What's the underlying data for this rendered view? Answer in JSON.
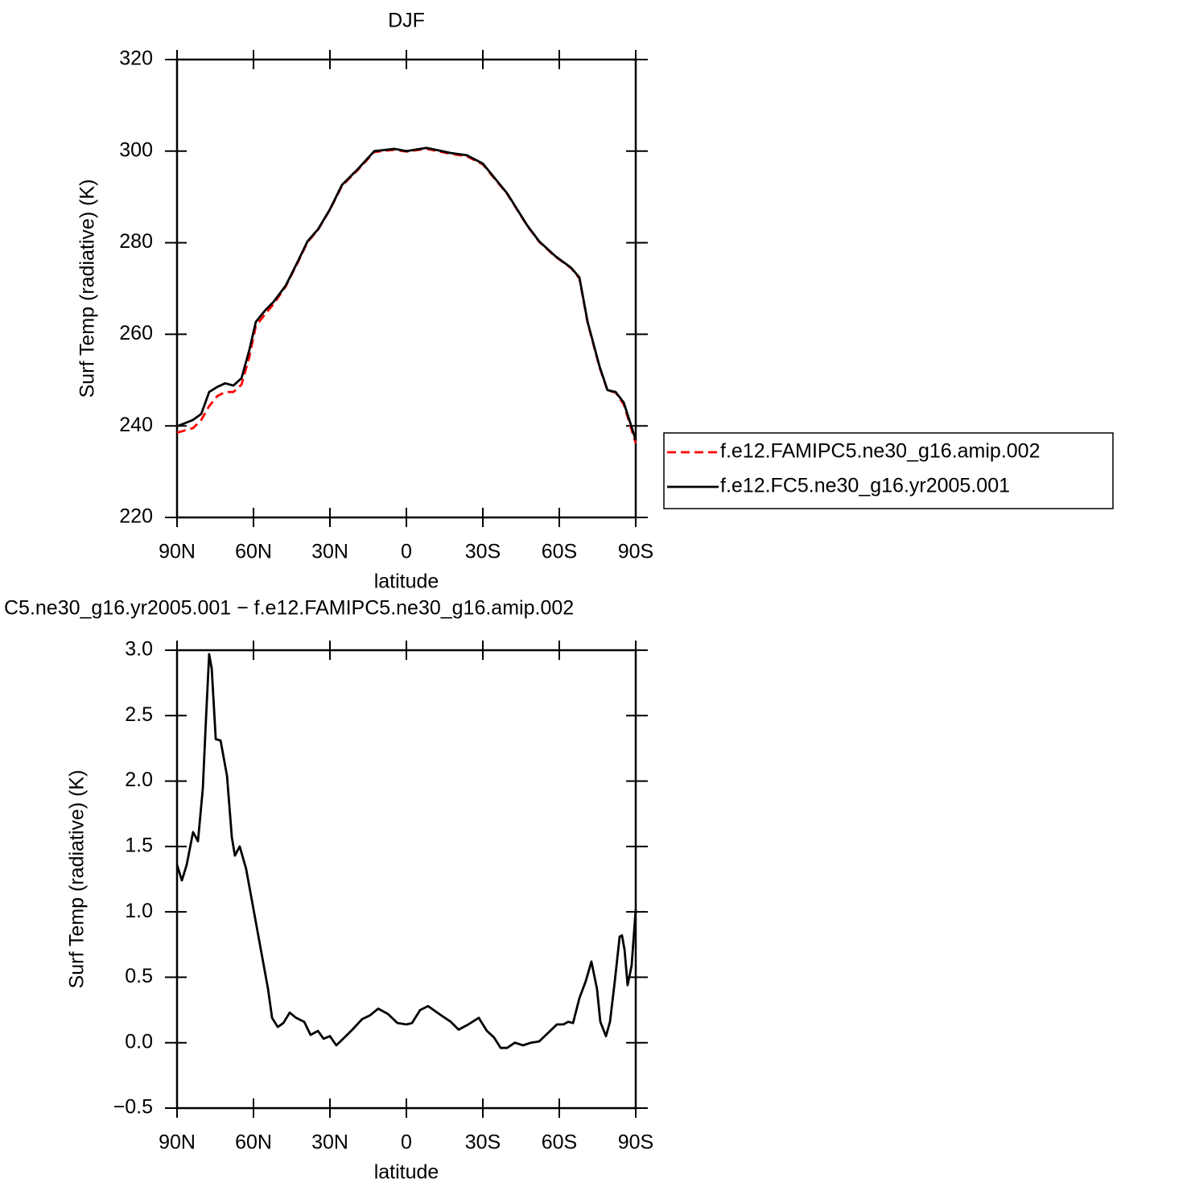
{
  "chart_data": [
    {
      "type": "line",
      "title": "DJF",
      "x_label": "latitude",
      "y_label": "Surf Temp (radiative) (K)",
      "x": [
        90,
        83.7,
        80.5,
        77.4,
        74.2,
        71.1,
        67.9,
        64.7,
        61.6,
        59.1,
        55.3,
        52.1,
        47.4,
        42.6,
        38.8,
        34.7,
        30,
        25.3,
        19,
        12.6,
        4.7,
        0,
        -7.9,
        -17.4,
        -23.7,
        -30,
        -39.5,
        -47.4,
        -52.1,
        -58.4,
        -64.7,
        -67.9,
        -71.1,
        -75.8,
        -78.9,
        -82.1,
        -85.3,
        -90
      ],
      "series": [
        {
          "name": "f.e12.FAMIPC5.ne30_g16.amip.002",
          "color": "#ff0000",
          "dashed": true,
          "values": [
            238.5,
            239.5,
            241.3,
            244.3,
            246.5,
            247.4,
            247.4,
            249.0,
            255.1,
            261.8,
            264.5,
            266.6,
            270.4,
            275.7,
            280.1,
            282.8,
            287.2,
            292.4,
            295.9,
            299.8,
            300.3,
            299.9,
            300.5,
            299.4,
            298.9,
            297.1,
            290.7,
            283.7,
            280.2,
            277.0,
            274.4,
            272.2,
            262.5,
            252.8,
            247.7,
            247.3,
            244.7,
            236.2
          ]
        },
        {
          "name": "f.e12.FC5.ne30_g16.yr2005.001",
          "color": "#000000",
          "dashed": false,
          "values": [
            239.9,
            241.3,
            242.6,
            247.4,
            248.5,
            249.3,
            248.8,
            250.4,
            256.6,
            262.7,
            265.3,
            267.1,
            270.6,
            275.9,
            280.3,
            282.9,
            287.3,
            292.6,
            296.1,
            300.0,
            300.5,
            300.0,
            300.7,
            299.6,
            299.1,
            297.3,
            290.8,
            283.8,
            280.3,
            277.1,
            274.5,
            272.4,
            262.7,
            253.0,
            247.8,
            247.4,
            245.1,
            236.9
          ]
        }
      ],
      "xlim": [
        90,
        -90
      ],
      "xticks": [
        {
          "value": 90,
          "label": "90N"
        },
        {
          "value": 60,
          "label": "60N"
        },
        {
          "value": 30,
          "label": "30N"
        },
        0,
        {
          "value": -30,
          "label": "30S"
        },
        {
          "value": -60,
          "label": "60S"
        },
        {
          "value": -90,
          "label": "90S"
        }
      ],
      "ylim": [
        220,
        320
      ],
      "yticks": [
        220,
        240,
        260,
        280,
        300,
        320
      ],
      "legend": "right"
    },
    {
      "type": "line",
      "title": "C5.ne30_g16.yr2005.001 − f.e12.FAMIPC5.ne30_g16.amip.002",
      "x_label": "latitude",
      "y_label": "Surf Temp (radiative) (K)",
      "x": [
        90,
        88.1,
        86.2,
        83.7,
        81.8,
        79.9,
        78.6,
        77.4,
        76.4,
        74.8,
        72.9,
        70.4,
        68.5,
        67.3,
        65.4,
        62.9,
        60.0,
        56.8,
        54.3,
        52.7,
        50.5,
        48.3,
        45.8,
        43.3,
        40.1,
        37.6,
        34.7,
        32.5,
        30.0,
        27.5,
        24.3,
        21.2,
        17.4,
        14.2,
        11.1,
        7.3,
        3.5,
        0,
        -2.2,
        -5.4,
        -8.5,
        -13.6,
        -17.4,
        -20.5,
        -24.3,
        -28.4,
        -31.6,
        -34.4,
        -37.0,
        -39.5,
        -42.6,
        -45.8,
        -48.9,
        -52.1,
        -55.9,
        -59.1,
        -61.6,
        -63.5,
        -65.4,
        -67.9,
        -70.4,
        -72.6,
        -74.8,
        -76.1,
        -78.3,
        -79.9,
        -81.8,
        -83.7,
        -84.6,
        -85.6,
        -86.8,
        -88.4,
        -90
      ],
      "values": [
        1.36,
        1.24,
        1.36,
        1.61,
        1.54,
        1.94,
        2.49,
        2.97,
        2.86,
        2.32,
        2.31,
        2.04,
        1.57,
        1.43,
        1.5,
        1.33,
        1.02,
        0.68,
        0.41,
        0.19,
        0.12,
        0.15,
        0.23,
        0.19,
        0.16,
        0.06,
        0.09,
        0.03,
        0.05,
        -0.02,
        0.04,
        0.1,
        0.18,
        0.21,
        0.26,
        0.22,
        0.15,
        0.14,
        0.15,
        0.25,
        0.28,
        0.21,
        0.16,
        0.1,
        0.14,
        0.19,
        0.09,
        0.04,
        -0.04,
        -0.04,
        0.0,
        -0.02,
        0.0,
        0.01,
        0.08,
        0.14,
        0.14,
        0.16,
        0.15,
        0.34,
        0.47,
        0.62,
        0.41,
        0.16,
        0.05,
        0.16,
        0.47,
        0.81,
        0.82,
        0.71,
        0.44,
        0.59,
        1.02
      ],
      "color": "#000000",
      "xlim": [
        90,
        -90
      ],
      "xticks": [
        {
          "value": 90,
          "label": "90N"
        },
        {
          "value": 60,
          "label": "60N"
        },
        {
          "value": 30,
          "label": "30N"
        },
        0,
        {
          "value": -30,
          "label": "30S"
        },
        {
          "value": -60,
          "label": "60S"
        },
        {
          "value": -90,
          "label": "90S"
        }
      ],
      "ylim": [
        -0.5,
        3.0
      ],
      "yticks": [
        {
          "value": -0.5,
          "label": "−0.5"
        },
        {
          "value": 0,
          "label": "0.0"
        },
        {
          "value": 0.5,
          "label": "0.5"
        },
        {
          "value": 1,
          "label": "1.0"
        },
        {
          "value": 1.5,
          "label": "1.5"
        },
        {
          "value": 2,
          "label": "2.0"
        },
        {
          "value": 2.5,
          "label": "2.5"
        },
        {
          "value": 3,
          "label": "3.0"
        }
      ]
    }
  ]
}
